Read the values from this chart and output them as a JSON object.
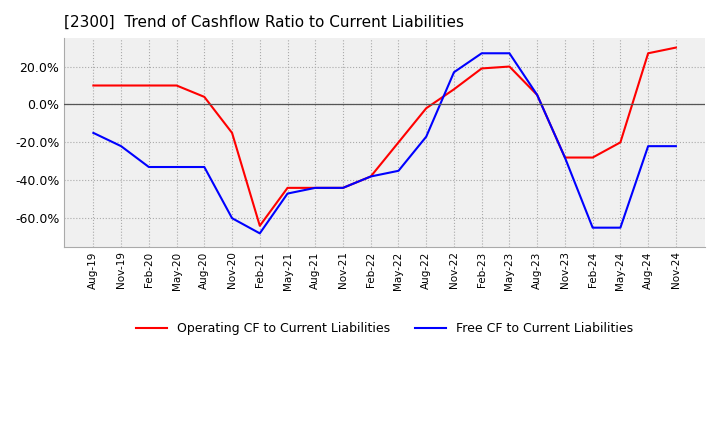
{
  "title": "[2300]  Trend of Cashflow Ratio to Current Liabilities",
  "title_fontsize": 11,
  "x_labels": [
    "Aug-19",
    "Nov-19",
    "Feb-20",
    "May-20",
    "Aug-20",
    "Nov-20",
    "Feb-21",
    "May-21",
    "Aug-21",
    "Nov-21",
    "Feb-22",
    "May-22",
    "Aug-22",
    "Nov-22",
    "Feb-23",
    "May-23",
    "Aug-23",
    "Nov-23",
    "Feb-24",
    "May-24",
    "Aug-24",
    "Nov-24"
  ],
  "operating_cf": [
    0.1,
    0.1,
    0.1,
    0.1,
    0.04,
    -0.15,
    -0.64,
    -0.44,
    -0.44,
    -0.44,
    -0.38,
    -0.2,
    -0.02,
    0.08,
    0.19,
    0.2,
    0.05,
    -0.28,
    -0.28,
    -0.2,
    0.27,
    0.3
  ],
  "free_cf": [
    -0.15,
    -0.22,
    -0.33,
    -0.33,
    -0.33,
    -0.6,
    -0.68,
    -0.47,
    -0.44,
    -0.44,
    -0.38,
    -0.35,
    -0.17,
    0.17,
    0.27,
    0.27,
    0.05,
    -0.28,
    -0.65,
    -0.65,
    -0.22,
    -0.22
  ],
  "ylim": [
    -0.75,
    0.35
  ],
  "yticks": [
    -0.6,
    -0.4,
    -0.2,
    0.0,
    0.2
  ],
  "operating_color": "#ff0000",
  "free_color": "#0000ff",
  "grid_color": "#aaaaaa",
  "plot_bg_color": "#f0f0f0",
  "background_color": "#ffffff",
  "legend_op": "Operating CF to Current Liabilities",
  "legend_free": "Free CF to Current Liabilities"
}
